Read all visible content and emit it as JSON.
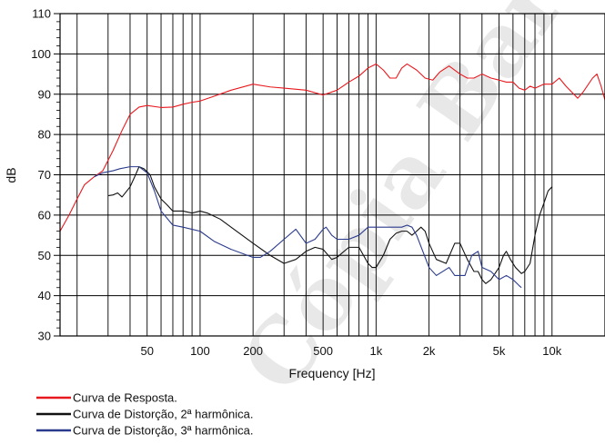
{
  "chart_data": {
    "type": "line",
    "title": "",
    "xlabel": "Frequency  [Hz]",
    "ylabel": "dB",
    "x_scale": "log",
    "xlim": [
      16,
      20000
    ],
    "ylim": [
      30,
      110
    ],
    "grid": true,
    "y_ticks": [
      30,
      40,
      50,
      60,
      70,
      80,
      90,
      100,
      110
    ],
    "x_ticks": [
      {
        "value": 50,
        "label": "50"
      },
      {
        "value": 100,
        "label": "100"
      },
      {
        "value": 200,
        "label": "200"
      },
      {
        "value": 500,
        "label": "500"
      },
      {
        "value": 1000,
        "label": "1k"
      },
      {
        "value": 2000,
        "label": "2k"
      },
      {
        "value": 5000,
        "label": "5k"
      },
      {
        "value": 10000,
        "label": "10k"
      }
    ],
    "legend_position": "bottom-left",
    "series": [
      {
        "name": "Curva de Resposta.",
        "color": "#e8191e",
        "points": [
          [
            16,
            56
          ],
          [
            18,
            60
          ],
          [
            20,
            64
          ],
          [
            22,
            67.5
          ],
          [
            25,
            69.5
          ],
          [
            28,
            71
          ],
          [
            32,
            76
          ],
          [
            36,
            81
          ],
          [
            40,
            85
          ],
          [
            45,
            86.8
          ],
          [
            50,
            87.2
          ],
          [
            60,
            86.7
          ],
          [
            70,
            86.8
          ],
          [
            80,
            87.5
          ],
          [
            90,
            88
          ],
          [
            100,
            88.3
          ],
          [
            120,
            89.5
          ],
          [
            150,
            91
          ],
          [
            200,
            92.5
          ],
          [
            250,
            91.8
          ],
          [
            300,
            91.5
          ],
          [
            400,
            91
          ],
          [
            500,
            89.8
          ],
          [
            600,
            91
          ],
          [
            700,
            93
          ],
          [
            800,
            94.5
          ],
          [
            900,
            96.5
          ],
          [
            1000,
            97.5
          ],
          [
            1100,
            96
          ],
          [
            1200,
            94
          ],
          [
            1300,
            94
          ],
          [
            1400,
            96.5
          ],
          [
            1500,
            97.5
          ],
          [
            1700,
            96
          ],
          [
            1900,
            94
          ],
          [
            2100,
            93.5
          ],
          [
            2300,
            95.5
          ],
          [
            2600,
            97
          ],
          [
            3000,
            95
          ],
          [
            3300,
            94
          ],
          [
            3600,
            94
          ],
          [
            4000,
            95
          ],
          [
            4500,
            94
          ],
          [
            5000,
            93.5
          ],
          [
            5500,
            93
          ],
          [
            6000,
            93
          ],
          [
            6500,
            91.5
          ],
          [
            7000,
            91
          ],
          [
            7500,
            92
          ],
          [
            8000,
            91.5
          ],
          [
            9000,
            92.5
          ],
          [
            10000,
            92.5
          ],
          [
            11000,
            94
          ],
          [
            12000,
            92
          ],
          [
            14000,
            89
          ],
          [
            15000,
            90.5
          ],
          [
            17000,
            94
          ],
          [
            18000,
            95
          ],
          [
            19000,
            92
          ],
          [
            20000,
            88.5
          ]
        ]
      },
      {
        "name": "Curva de Distorção, 2ª harmônica.",
        "color": "#111111",
        "points": [
          [
            30,
            64.8
          ],
          [
            32,
            65
          ],
          [
            34,
            65.5
          ],
          [
            36,
            64.5
          ],
          [
            40,
            67
          ],
          [
            43,
            70
          ],
          [
            45,
            72
          ],
          [
            48,
            71.5
          ],
          [
            52,
            70
          ],
          [
            55,
            67
          ],
          [
            60,
            64
          ],
          [
            65,
            62.5
          ],
          [
            70,
            61
          ],
          [
            80,
            61
          ],
          [
            90,
            60.5
          ],
          [
            100,
            61
          ],
          [
            110,
            60.5
          ],
          [
            130,
            59
          ],
          [
            150,
            57
          ],
          [
            200,
            53
          ],
          [
            250,
            50
          ],
          [
            300,
            48
          ],
          [
            350,
            49
          ],
          [
            400,
            51
          ],
          [
            450,
            52
          ],
          [
            500,
            51.5
          ],
          [
            560,
            49
          ],
          [
            600,
            49.5
          ],
          [
            700,
            52
          ],
          [
            800,
            52
          ],
          [
            900,
            48
          ],
          [
            950,
            47
          ],
          [
            1000,
            47
          ],
          [
            1100,
            50
          ],
          [
            1200,
            54
          ],
          [
            1300,
            55.5
          ],
          [
            1400,
            56
          ],
          [
            1500,
            56
          ],
          [
            1600,
            55
          ],
          [
            1700,
            56
          ],
          [
            1800,
            57
          ],
          [
            1900,
            56
          ],
          [
            2000,
            53
          ],
          [
            2200,
            49
          ],
          [
            2500,
            48
          ],
          [
            2800,
            53
          ],
          [
            3000,
            53
          ],
          [
            3300,
            49
          ],
          [
            3600,
            46
          ],
          [
            3800,
            46
          ],
          [
            4000,
            44
          ],
          [
            4200,
            43
          ],
          [
            4500,
            44
          ],
          [
            5000,
            47
          ],
          [
            5300,
            50
          ],
          [
            5500,
            51
          ],
          [
            5800,
            49
          ],
          [
            6200,
            47
          ],
          [
            6700,
            45.5
          ],
          [
            7000,
            46
          ],
          [
            7500,
            48
          ],
          [
            8000,
            55
          ],
          [
            8500,
            60
          ],
          [
            9000,
            63
          ],
          [
            9500,
            66
          ],
          [
            10000,
            67
          ]
        ]
      },
      {
        "name": "Curva de Distorção, 3ª harmônica.",
        "color": "#2a3a8c",
        "points": [
          [
            25,
            69.5
          ],
          [
            28,
            70.5
          ],
          [
            32,
            71
          ],
          [
            35,
            71.5
          ],
          [
            40,
            72
          ],
          [
            45,
            72
          ],
          [
            50,
            70.5
          ],
          [
            55,
            66
          ],
          [
            60,
            61
          ],
          [
            70,
            57.5
          ],
          [
            80,
            57
          ],
          [
            100,
            56
          ],
          [
            120,
            53.5
          ],
          [
            150,
            51.5
          ],
          [
            200,
            49.5
          ],
          [
            220,
            49.5
          ],
          [
            250,
            51
          ],
          [
            300,
            54
          ],
          [
            350,
            56.5
          ],
          [
            400,
            53
          ],
          [
            450,
            54
          ],
          [
            500,
            56.5
          ],
          [
            520,
            57
          ],
          [
            560,
            55
          ],
          [
            600,
            54
          ],
          [
            700,
            54
          ],
          [
            800,
            55
          ],
          [
            900,
            57
          ],
          [
            1000,
            57
          ],
          [
            1200,
            57
          ],
          [
            1400,
            57
          ],
          [
            1500,
            57.5
          ],
          [
            1600,
            57
          ],
          [
            1700,
            55
          ],
          [
            2000,
            47
          ],
          [
            2200,
            45
          ],
          [
            2600,
            47
          ],
          [
            2800,
            45
          ],
          [
            3200,
            45
          ],
          [
            3500,
            50
          ],
          [
            3800,
            51
          ],
          [
            4000,
            47
          ],
          [
            4500,
            46
          ],
          [
            5000,
            44
          ],
          [
            5500,
            45
          ],
          [
            6000,
            44
          ],
          [
            6500,
            42.5
          ],
          [
            6700,
            42
          ]
        ]
      }
    ]
  },
  "watermark": {
    "text": "Cópia Bar",
    "color": "rgba(214,214,214,0.55)"
  }
}
